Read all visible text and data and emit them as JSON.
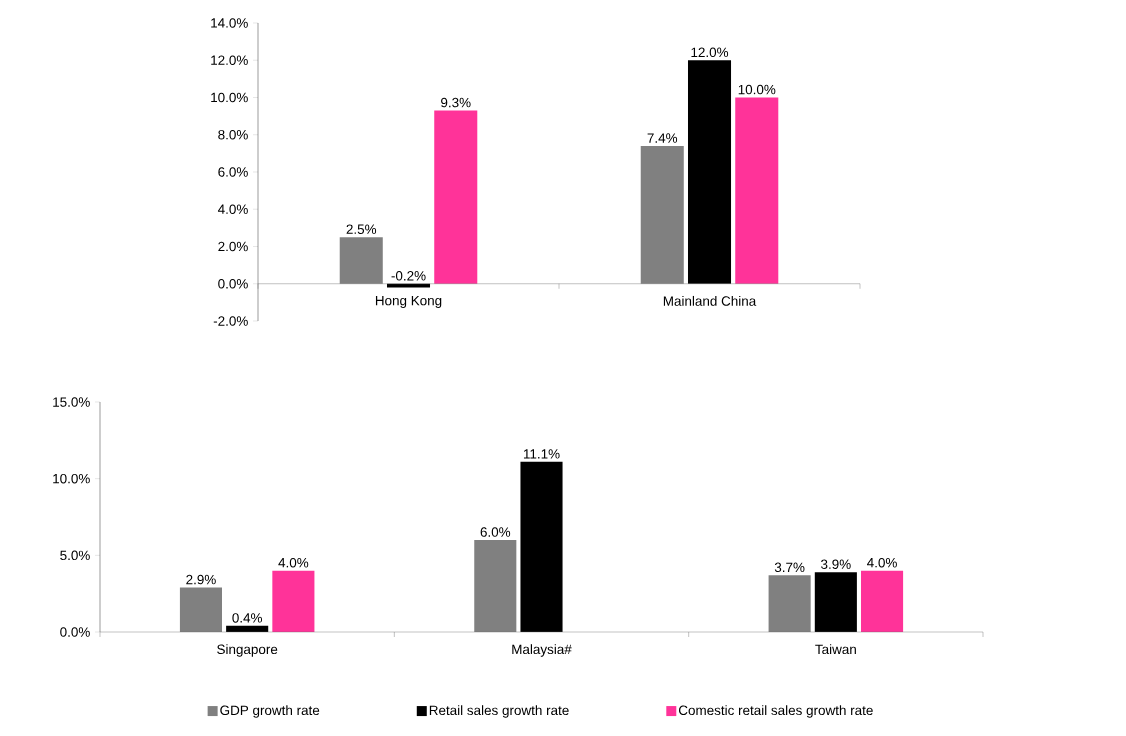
{
  "chart_data": [
    {
      "type": "bar",
      "categories": [
        "Hong Kong",
        "Mainland China"
      ],
      "series": [
        {
          "color": "#808080",
          "values": [
            2.5,
            7.4
          ],
          "value_labels": [
            "2.5%",
            "7.4%"
          ]
        },
        {
          "color": "#000000",
          "values": [
            -0.2,
            12.0
          ],
          "value_labels": [
            "-0.2%",
            "12.0%"
          ]
        },
        {
          "color": "#ff3399",
          "values": [
            9.3,
            10.0
          ],
          "value_labels": [
            "9.3%",
            "10.0%"
          ]
        }
      ],
      "ylim": [
        -2,
        14
      ],
      "yticks": [
        {
          "value": -2,
          "label": "-2.0%"
        },
        {
          "value": 0,
          "label": "0.0%"
        },
        {
          "value": 2,
          "label": "2.0%"
        },
        {
          "value": 4,
          "label": "4.0%"
        },
        {
          "value": 6,
          "label": "6.0%"
        },
        {
          "value": 8,
          "label": "8.0%"
        },
        {
          "value": 10,
          "label": "10.0%"
        },
        {
          "value": 12,
          "label": "12.0%"
        },
        {
          "value": 14,
          "label": "14.0%"
        }
      ]
    },
    {
      "type": "bar",
      "categories": [
        "Singapore",
        "Malaysia#",
        "Taiwan"
      ],
      "series": [
        {
          "name": "GDP growth rate",
          "color": "#808080",
          "values": [
            2.9,
            6.0,
            3.7
          ],
          "value_labels": [
            "2.9%",
            "6.0%",
            "3.7%"
          ]
        },
        {
          "name": "Retail sales growth rate",
          "color": "#000000",
          "values": [
            0.4,
            11.1,
            3.9
          ],
          "value_labels": [
            "0.4%",
            "11.1%",
            "3.9%"
          ]
        },
        {
          "name": "Comestic retail sales growth rate",
          "color": "#ff3399",
          "values": [
            4.0,
            null,
            4.0
          ],
          "value_labels": [
            "4.0%",
            null,
            "4.0%"
          ]
        }
      ],
      "ylim": [
        0,
        15
      ],
      "yticks": [
        {
          "value": 0,
          "label": "0.0%"
        },
        {
          "value": 5,
          "label": "5.0%"
        },
        {
          "value": 10,
          "label": "10.0%"
        },
        {
          "value": 15,
          "label": "15.0%"
        }
      ],
      "legend": "bottom"
    }
  ]
}
